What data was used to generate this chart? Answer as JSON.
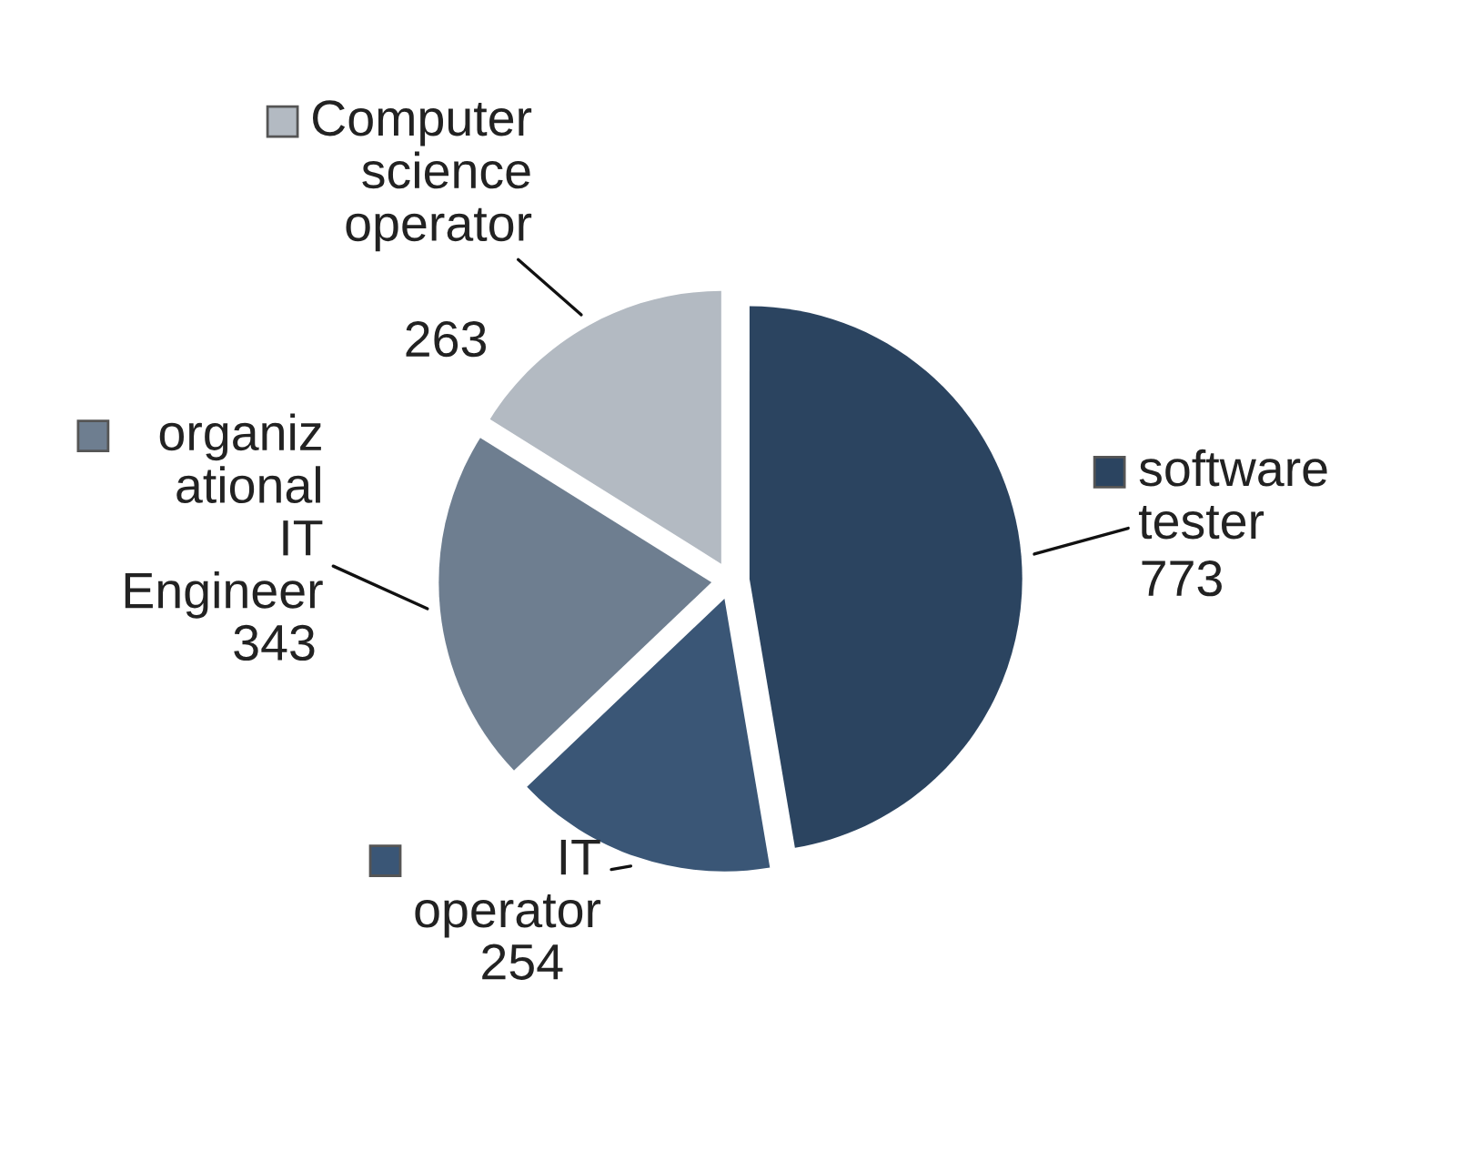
{
  "chart_data": {
    "type": "pie",
    "categories": [
      "software\ntester",
      "IT\noperator",
      "organiz\national\nIT\nEngineer",
      "Computer\nscience\noperator"
    ],
    "values": [
      773,
      254,
      343,
      263
    ],
    "colors": [
      "#2b4460",
      "#3a5676",
      "#6e7e90",
      "#b3bac2"
    ],
    "data_labels": true,
    "legend": "right"
  }
}
